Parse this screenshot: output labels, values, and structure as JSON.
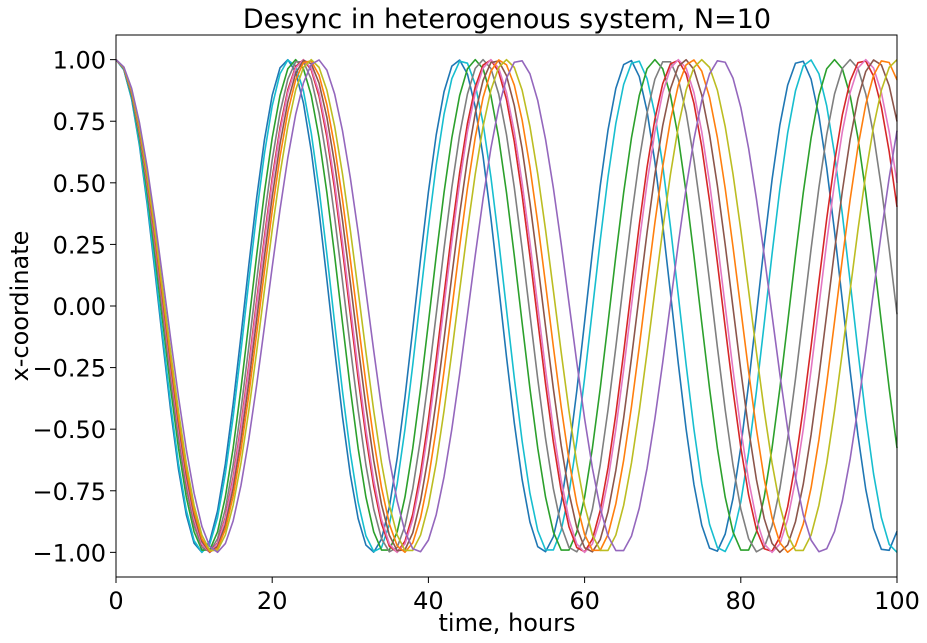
{
  "chart_data": {
    "type": "line",
    "title": "Desync in heterogenous system, N=10",
    "xlabel": "time, hours",
    "ylabel": "x-coordinate",
    "xlim": [
      0,
      100
    ],
    "ylim": [
      -1.1,
      1.1
    ],
    "xticks": [
      0,
      20,
      40,
      60,
      80,
      100
    ],
    "xtick_labels": [
      "0",
      "20",
      "40",
      "60",
      "80",
      "100"
    ],
    "yticks": [
      1.0,
      0.75,
      0.5,
      0.25,
      0.0,
      -0.25,
      -0.5,
      -0.75,
      -1.0
    ],
    "ytick_labels": [
      "1.00",
      "0.75",
      "0.50",
      "0.25",
      "0.00",
      "−0.25",
      "−0.50",
      "−0.75",
      "−1.00"
    ],
    "grid": false,
    "legend": false,
    "x_step": 1,
    "series": [
      {
        "color": "#1f77b4",
        "period_hours": 21.9
      },
      {
        "color": "#17becf",
        "period_hours": 22.2
      },
      {
        "color": "#2ca02c",
        "period_hours": 23.0
      },
      {
        "color": "#7f7f7f",
        "period_hours": 23.5
      },
      {
        "color": "#d62728",
        "period_hours": 23.9
      },
      {
        "color": "#e377c2",
        "period_hours": 24.0
      },
      {
        "color": "#8c564b",
        "period_hours": 24.3
      },
      {
        "color": "#ff7f0e",
        "period_hours": 24.6
      },
      {
        "color": "#bcbd22",
        "period_hours": 25.0
      },
      {
        "color": "#9467bd",
        "period_hours": 25.8
      }
    ]
  }
}
